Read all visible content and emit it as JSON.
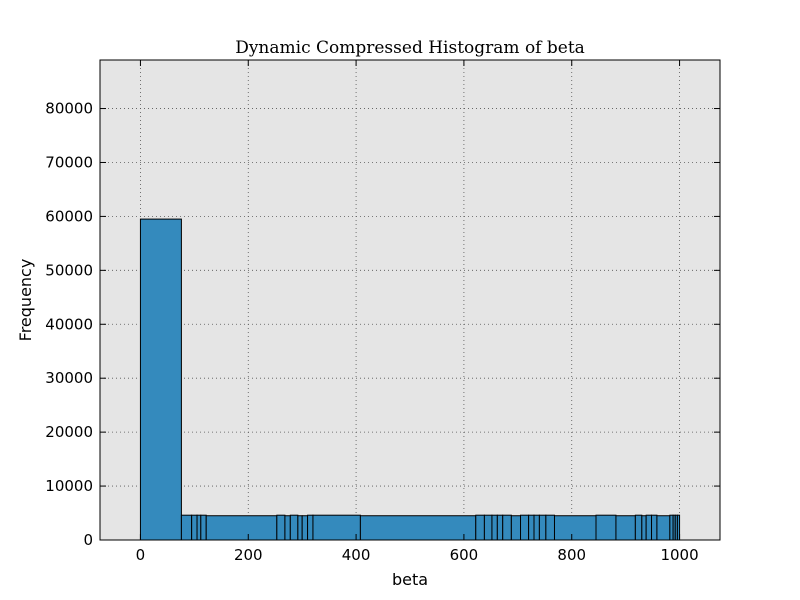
{
  "chart_data": {
    "type": "bar",
    "title": "Dynamic Compressed Histogram of beta",
    "xlabel": "beta",
    "ylabel": "Frequency",
    "xlim": [
      -75,
      1075
    ],
    "ylim": [
      0,
      89000
    ],
    "xticks": [
      0,
      200,
      400,
      600,
      800,
      1000
    ],
    "yticks": [
      0,
      10000,
      20000,
      30000,
      40000,
      50000,
      60000,
      70000,
      80000
    ],
    "grid": true,
    "colors": {
      "bar_fill": "#348ABD",
      "bar_edge": "#000000",
      "plot_bg": "#E5E5E5",
      "grid": "#555555"
    },
    "bins": [
      {
        "x0": 0,
        "x1": 76,
        "value": 59500
      },
      {
        "x0": 76,
        "x1": 95,
        "value": 4600
      },
      {
        "x0": 95,
        "x1": 105,
        "value": 4600
      },
      {
        "x0": 105,
        "x1": 112,
        "value": 4600
      },
      {
        "x0": 112,
        "x1": 122,
        "value": 4600
      },
      {
        "x0": 122,
        "x1": 253,
        "value": 4500
      },
      {
        "x0": 253,
        "x1": 268,
        "value": 4600
      },
      {
        "x0": 268,
        "x1": 278,
        "value": 4500
      },
      {
        "x0": 278,
        "x1": 292,
        "value": 4600
      },
      {
        "x0": 292,
        "x1": 300,
        "value": 4500
      },
      {
        "x0": 300,
        "x1": 310,
        "value": 4500
      },
      {
        "x0": 310,
        "x1": 320,
        "value": 4600
      },
      {
        "x0": 320,
        "x1": 408,
        "value": 4600
      },
      {
        "x0": 408,
        "x1": 622,
        "value": 4500
      },
      {
        "x0": 622,
        "x1": 638,
        "value": 4600
      },
      {
        "x0": 638,
        "x1": 652,
        "value": 4600
      },
      {
        "x0": 652,
        "x1": 662,
        "value": 4600
      },
      {
        "x0": 662,
        "x1": 672,
        "value": 4600
      },
      {
        "x0": 672,
        "x1": 688,
        "value": 4600
      },
      {
        "x0": 688,
        "x1": 705,
        "value": 4500
      },
      {
        "x0": 705,
        "x1": 720,
        "value": 4600
      },
      {
        "x0": 720,
        "x1": 730,
        "value": 4600
      },
      {
        "x0": 730,
        "x1": 740,
        "value": 4600
      },
      {
        "x0": 740,
        "x1": 752,
        "value": 4600
      },
      {
        "x0": 752,
        "x1": 768,
        "value": 4600
      },
      {
        "x0": 768,
        "x1": 845,
        "value": 4500
      },
      {
        "x0": 845,
        "x1": 882,
        "value": 4600
      },
      {
        "x0": 882,
        "x1": 918,
        "value": 4500
      },
      {
        "x0": 918,
        "x1": 930,
        "value": 4600
      },
      {
        "x0": 930,
        "x1": 938,
        "value": 4500
      },
      {
        "x0": 938,
        "x1": 948,
        "value": 4600
      },
      {
        "x0": 948,
        "x1": 958,
        "value": 4600
      },
      {
        "x0": 958,
        "x1": 982,
        "value": 4500
      },
      {
        "x0": 982,
        "x1": 988,
        "value": 4600
      },
      {
        "x0": 988,
        "x1": 992,
        "value": 4600
      },
      {
        "x0": 992,
        "x1": 996,
        "value": 4600
      },
      {
        "x0": 996,
        "x1": 1000,
        "value": 4600
      }
    ]
  }
}
